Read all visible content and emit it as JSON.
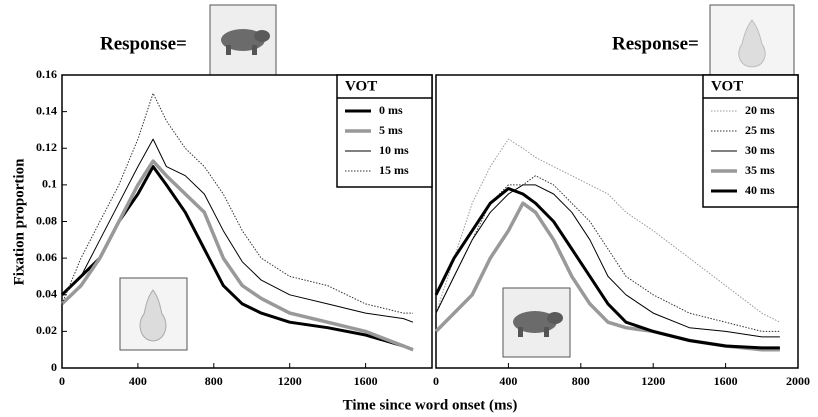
{
  "chart_data": [
    {
      "type": "line",
      "title": "Response=",
      "ylabel": "Fixation proportion",
      "xlabel": "Time since word onset (ms)",
      "legend_title": "VOT",
      "legend": "upper right",
      "x": [
        0,
        100,
        200,
        300,
        400,
        480,
        550,
        650,
        750,
        850,
        950,
        1050,
        1200,
        1400,
        1600,
        1800,
        1850
      ],
      "series": [
        {
          "name": "0 ms",
          "color": "#000000",
          "linewidth": 3,
          "linestyle": "solid",
          "values": [
            0.04,
            0.05,
            0.06,
            0.08,
            0.095,
            0.11,
            0.1,
            0.085,
            0.065,
            0.045,
            0.035,
            0.03,
            0.025,
            0.022,
            0.018,
            0.012,
            0.01
          ]
        },
        {
          "name": "5 ms",
          "color": "#999999",
          "linewidth": 3.5,
          "linestyle": "solid",
          "values": [
            0.035,
            0.045,
            0.06,
            0.08,
            0.1,
            0.113,
            0.105,
            0.095,
            0.085,
            0.06,
            0.045,
            0.038,
            0.03,
            0.025,
            0.02,
            0.012,
            0.01
          ]
        },
        {
          "name": "10 ms",
          "color": "#000000",
          "linewidth": 1,
          "linestyle": "solid",
          "values": [
            0.04,
            0.05,
            0.07,
            0.09,
            0.11,
            0.125,
            0.11,
            0.105,
            0.095,
            0.075,
            0.058,
            0.048,
            0.04,
            0.035,
            0.03,
            0.027,
            0.025
          ]
        },
        {
          "name": "15 ms",
          "color": "#333333",
          "linewidth": 1,
          "linestyle": "dotted",
          "values": [
            0.035,
            0.06,
            0.08,
            0.1,
            0.125,
            0.15,
            0.135,
            0.12,
            0.11,
            0.095,
            0.075,
            0.06,
            0.05,
            0.045,
            0.035,
            0.03,
            0.03
          ]
        }
      ],
      "xlim": [
        0,
        1950
      ],
      "xticks": [
        0,
        400,
        800,
        1200,
        1600
      ],
      "ylim": [
        0,
        0.16
      ],
      "yticks": [
        0,
        0.02,
        0.04,
        0.06,
        0.08,
        0.1,
        0.12,
        0.14,
        0.16
      ]
    },
    {
      "type": "line",
      "title": "Response=",
      "legend_title": "VOT",
      "legend": "upper right",
      "x": [
        0,
        100,
        200,
        300,
        400,
        480,
        550,
        650,
        750,
        850,
        950,
        1050,
        1200,
        1400,
        1600,
        1800,
        1900
      ],
      "series": [
        {
          "name": "20 ms",
          "color": "#999999",
          "linewidth": 1,
          "linestyle": "dotted",
          "values": [
            0.03,
            0.06,
            0.09,
            0.11,
            0.125,
            0.12,
            0.115,
            0.11,
            0.105,
            0.1,
            0.095,
            0.085,
            0.075,
            0.06,
            0.045,
            0.03,
            0.025
          ]
        },
        {
          "name": "25 ms",
          "color": "#333333",
          "linewidth": 1,
          "linestyle": "dotted",
          "values": [
            0.03,
            0.05,
            0.07,
            0.09,
            0.1,
            0.1,
            0.105,
            0.1,
            0.09,
            0.08,
            0.065,
            0.05,
            0.04,
            0.03,
            0.025,
            0.02,
            0.02
          ]
        },
        {
          "name": "30 ms",
          "color": "#000000",
          "linewidth": 1,
          "linestyle": "solid",
          "values": [
            0.03,
            0.05,
            0.07,
            0.085,
            0.095,
            0.1,
            0.1,
            0.095,
            0.085,
            0.07,
            0.05,
            0.04,
            0.03,
            0.022,
            0.02,
            0.017,
            0.017
          ]
        },
        {
          "name": "35 ms",
          "color": "#999999",
          "linewidth": 3.5,
          "linestyle": "solid",
          "values": [
            0.02,
            0.03,
            0.04,
            0.06,
            0.075,
            0.09,
            0.085,
            0.07,
            0.05,
            0.035,
            0.025,
            0.022,
            0.02,
            0.015,
            0.012,
            0.01,
            0.01
          ]
        },
        {
          "name": "40 ms",
          "color": "#000000",
          "linewidth": 3,
          "linestyle": "solid",
          "values": [
            0.04,
            0.06,
            0.075,
            0.09,
            0.098,
            0.095,
            0.09,
            0.08,
            0.065,
            0.05,
            0.035,
            0.025,
            0.02,
            0.015,
            0.012,
            0.011,
            0.011
          ]
        }
      ],
      "xlim": [
        0,
        2000
      ],
      "xticks": [
        0,
        400,
        800,
        1200,
        1600,
        2000
      ],
      "ylim": [
        0,
        0.16
      ]
    }
  ]
}
